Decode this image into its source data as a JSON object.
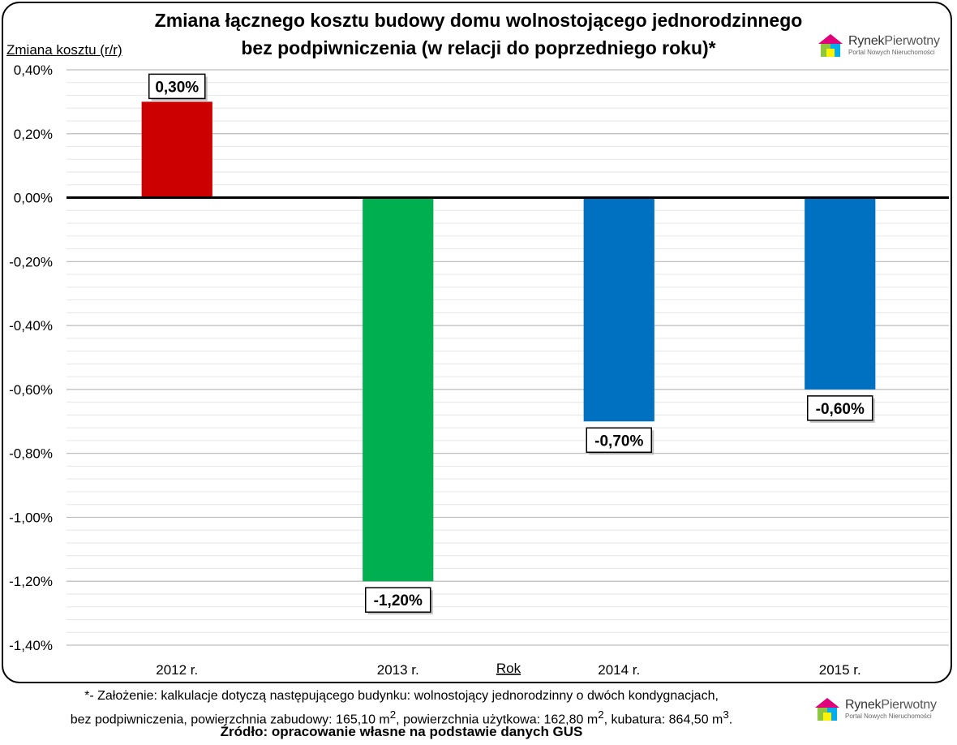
{
  "chart_data": {
    "type": "bar",
    "title": "Zmiana łącznego kosztu budowy domu wolnostojącego jednorodzinnego\nbez podpiwniczenia (w relacji do poprzedniego roku)*",
    "ylabel": "Zmiana kosztu (r/r)",
    "xlabel": "Rok",
    "categories": [
      "2012 r.",
      "2013 r.",
      "2014 r.",
      "2015 r."
    ],
    "values": [
      0.3,
      -1.2,
      -0.7,
      -0.6
    ],
    "data_labels": [
      "0,30%",
      "-1,20%",
      "-0,70%",
      "-0,60%"
    ],
    "bar_colors": [
      "#cc0000",
      "#00b050",
      "#0070c0",
      "#0070c0"
    ],
    "ylim": [
      -1.4,
      0.4
    ],
    "yticks": [
      0.4,
      0.2,
      0.0,
      -0.2,
      -0.4,
      -0.6,
      -0.8,
      -1.0,
      -1.2,
      -1.4
    ],
    "ytick_labels": [
      "0,40%",
      "0,20%",
      "0,00%",
      "-0,20%",
      "-0,40%",
      "-0,60%",
      "-0,80%",
      "-1,00%",
      "-1,20%",
      "-1,40%"
    ],
    "grid": true,
    "legend": "none"
  },
  "logo": {
    "brand_a": "Rynek",
    "brand_b": "Pierwotny",
    "tagline": "Portal Nowych Nieruchomości"
  },
  "footnote": {
    "line1": "*- Założenie: kalkulacje dotyczą następującego budynku: wolnostojący jednorodzinny o dwóch kondygnacjach,",
    "line2_a": "bez podpiwniczenia, powierzchnia zabudowy: 165,10 m",
    "line2_b": ", powierzchnia użytkowa: 162,80 m",
    "line2_c": ", kubatura: 864,50 m",
    "sup2": "2",
    "sup3": "3",
    "end": "."
  },
  "source": "Źródło: opracowanie własne na podstawie danych GUS"
}
